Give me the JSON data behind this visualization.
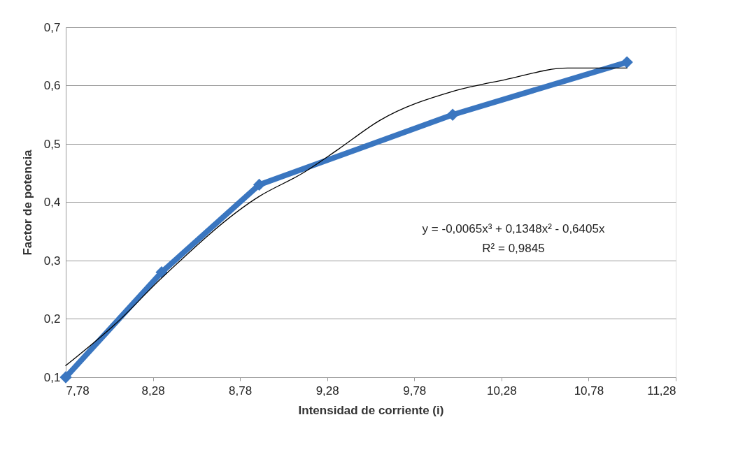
{
  "chart_data": {
    "type": "line",
    "xlabel": "Intensidad de corriente (i)",
    "ylabel": "Factor de potencia",
    "x": [
      7.78,
      8.33,
      8.89,
      10.0,
      11.0
    ],
    "series": [
      {
        "color": "#3a76c0",
        "values": [
          0.1,
          0.28,
          0.43,
          0.55,
          0.64
        ],
        "marker": "diamond",
        "line_style": "solid"
      },
      {
        "type": "line",
        "color": "#000000",
        "marker": "none",
        "line_style": "solid",
        "x": [
          7.78,
          8.06,
          8.33,
          8.89,
          9.14,
          9.34,
          9.58,
          10.0,
          10.3,
          10.66,
          11.0
        ],
        "values": [
          0.12,
          0.19,
          0.27,
          0.41,
          0.45,
          0.49,
          0.54,
          0.59,
          0.61,
          0.63,
          0.63
        ]
      }
    ],
    "xlim": [
      7.78,
      11.28
    ],
    "xticks": [
      {
        "value": 7.78,
        "label": "7,78"
      },
      {
        "value": 8.28,
        "label": "8,28"
      },
      {
        "value": 8.78,
        "label": "8,78"
      },
      {
        "value": 9.28,
        "label": "9,28"
      },
      {
        "value": 9.78,
        "label": "9,78"
      },
      {
        "value": 10.28,
        "label": "10,28"
      },
      {
        "value": 10.78,
        "label": "10,78"
      },
      {
        "value": 11.28,
        "label": "11,28"
      }
    ],
    "ylim": [
      0.1,
      0.7
    ],
    "yticks": [
      {
        "value": 0.1,
        "label": "0,1"
      },
      {
        "value": 0.2,
        "label": "0,2"
      },
      {
        "value": 0.3,
        "label": "0,3"
      },
      {
        "value": 0.4,
        "label": "0,4"
      },
      {
        "value": 0.5,
        "label": "0,5"
      },
      {
        "value": 0.6,
        "label": "0,6"
      },
      {
        "value": 0.7,
        "label": "0,7"
      }
    ],
    "grid": "y",
    "annotations": [
      "y = -0,0065x³ + 0,1348x² - 0,6405x",
      "R² = 0,9845"
    ]
  }
}
